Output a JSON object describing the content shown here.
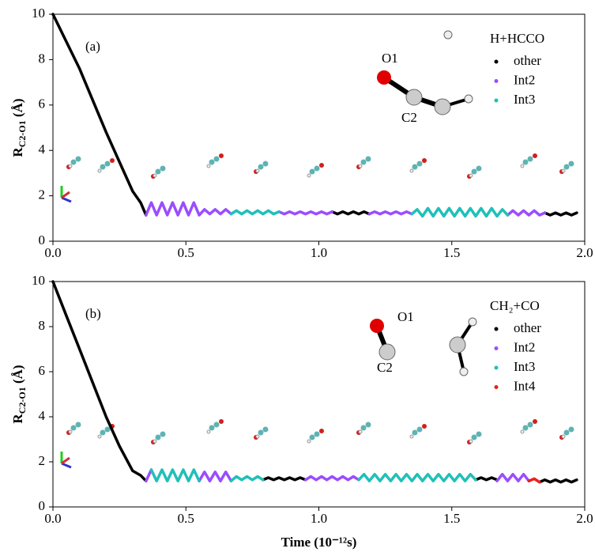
{
  "chart_data": [
    {
      "type": "line",
      "panel_label": "(a)",
      "legend_title": "H+HCCO",
      "ylabel": "R",
      "ylabel_sub": "C2-O1",
      "ylabel_unit": " (Å)",
      "annotations": [
        "O1",
        "C2"
      ],
      "xlim": [
        0,
        2
      ],
      "ylim": [
        0,
        10
      ],
      "xticks": [
        {
          "value": 0,
          "label": "0.0"
        },
        {
          "value": 0.5,
          "label": "0.5"
        },
        {
          "value": 1,
          "label": "1.0"
        },
        {
          "value": 1.5,
          "label": "1.5"
        },
        {
          "value": 2,
          "label": "2.0"
        }
      ],
      "yticks": [
        0,
        2,
        4,
        6,
        8,
        10
      ],
      "series": [
        {
          "name": "other",
          "color": "#000000",
          "x": [
            0,
            0.05,
            0.1,
            0.15,
            0.2,
            0.25,
            0.3,
            0.33,
            0.35,
            0.7,
            1.05,
            1.07,
            1.09,
            1.11,
            1.13,
            1.15,
            1.17,
            1.19,
            1.5,
            1.85,
            1.87,
            1.89,
            1.91,
            1.93,
            1.95,
            1.97
          ],
          "values": [
            10,
            8.8,
            7.6,
            6.2,
            4.8,
            3.5,
            2.2,
            1.7,
            1.15,
            null,
            1.3,
            1.2,
            1.3,
            1.2,
            1.3,
            1.2,
            1.3,
            1.2,
            null,
            1.25,
            1.15,
            1.25,
            1.15,
            1.25,
            1.15,
            1.25
          ]
        },
        {
          "name": "Int2",
          "color": "#9b4dff",
          "x": [
            0.35,
            0.37,
            0.39,
            0.41,
            0.43,
            0.45,
            0.47,
            0.49,
            0.51,
            0.53,
            0.55,
            0.57,
            0.59,
            0.61,
            0.63,
            0.65,
            0.67,
            0.76,
            0.85,
            0.87,
            0.89,
            0.91,
            0.93,
            0.95,
            0.97,
            0.99,
            1.01,
            1.03,
            1.05,
            1.12,
            1.19,
            1.21,
            1.23,
            1.25,
            1.27,
            1.29,
            1.31,
            1.33,
            1.35,
            1.5,
            1.71,
            1.73,
            1.75,
            1.77,
            1.79,
            1.81,
            1.83,
            1.85
          ],
          "values": [
            1.15,
            1.7,
            1.15,
            1.7,
            1.15,
            1.7,
            1.15,
            1.7,
            1.15,
            1.7,
            1.15,
            1.4,
            1.2,
            1.4,
            1.2,
            1.4,
            1.2,
            null,
            1.3,
            1.2,
            1.3,
            1.2,
            1.3,
            1.2,
            1.3,
            1.2,
            1.3,
            1.2,
            1.3,
            null,
            1.2,
            1.3,
            1.2,
            1.3,
            1.2,
            1.3,
            1.2,
            1.3,
            1.2,
            null,
            1.15,
            1.35,
            1.15,
            1.35,
            1.15,
            1.35,
            1.15,
            1.25
          ]
        },
        {
          "name": "Int3",
          "color": "#20c0b8",
          "x": [
            0.67,
            0.69,
            0.71,
            0.73,
            0.75,
            0.77,
            0.79,
            0.81,
            0.83,
            0.85,
            1.1,
            1.35,
            1.37,
            1.39,
            1.41,
            1.43,
            1.45,
            1.47,
            1.49,
            1.51,
            1.53,
            1.55,
            1.57,
            1.59,
            1.61,
            1.63,
            1.65,
            1.67,
            1.69,
            1.71
          ],
          "values": [
            1.2,
            1.35,
            1.2,
            1.35,
            1.2,
            1.35,
            1.2,
            1.35,
            1.2,
            1.3,
            null,
            1.2,
            1.4,
            1.1,
            1.45,
            1.1,
            1.45,
            1.1,
            1.45,
            1.1,
            1.45,
            1.1,
            1.45,
            1.1,
            1.45,
            1.1,
            1.45,
            1.1,
            1.4,
            1.15
          ]
        }
      ]
    },
    {
      "type": "line",
      "panel_label": "(b)",
      "legend_title": "CH₂+CO",
      "ylabel": "R",
      "ylabel_sub": "C2-O1",
      "ylabel_unit": " (Å)",
      "xlabel": "Time (10⁻¹²s)",
      "annotations": [
        "O1",
        "C2"
      ],
      "xlim": [
        0,
        2
      ],
      "ylim": [
        0,
        10
      ],
      "xticks": [
        {
          "value": 0,
          "label": "0.0"
        },
        {
          "value": 0.5,
          "label": "0.5"
        },
        {
          "value": 1,
          "label": "1.0"
        },
        {
          "value": 1.5,
          "label": "1.5"
        },
        {
          "value": 2,
          "label": "2.0"
        }
      ],
      "yticks": [
        0,
        2,
        4,
        6,
        8,
        10
      ],
      "series": [
        {
          "name": "other",
          "color": "#000000",
          "x": [
            0,
            0.05,
            0.1,
            0.15,
            0.2,
            0.25,
            0.3,
            0.33,
            0.35,
            0.6,
            0.79,
            0.81,
            0.83,
            0.85,
            0.87,
            0.89,
            0.91,
            0.93,
            0.95,
            1.3,
            1.59,
            1.61,
            1.63,
            1.65,
            1.67,
            1.75,
            1.83,
            1.85,
            1.87,
            1.89,
            1.91,
            1.93,
            1.95,
            1.97
          ],
          "values": [
            10,
            8.5,
            7,
            5.5,
            4,
            2.7,
            1.6,
            1.4,
            1.15,
            null,
            1.2,
            1.3,
            1.2,
            1.3,
            1.2,
            1.3,
            1.2,
            1.3,
            1.2,
            null,
            1.2,
            1.3,
            1.2,
            1.3,
            1.2,
            null,
            1.1,
            1.2,
            1.1,
            1.2,
            1.1,
            1.2,
            1.1,
            1.2
          ]
        },
        {
          "name": "Int2",
          "color": "#9b4dff",
          "x": [
            0.35,
            0.37,
            0.46,
            0.55,
            0.57,
            0.59,
            0.61,
            0.63,
            0.65,
            0.67,
            0.8,
            0.95,
            0.97,
            0.99,
            1.01,
            1.03,
            1.05,
            1.07,
            1.09,
            1.11,
            1.13,
            1.15,
            1.4,
            1.67,
            1.69,
            1.71,
            1.73,
            1.75,
            1.77,
            1.79
          ],
          "values": [
            1.15,
            1.65,
            null,
            1.15,
            1.55,
            1.15,
            1.55,
            1.15,
            1.55,
            1.15,
            null,
            1.2,
            1.35,
            1.2,
            1.35,
            1.2,
            1.35,
            1.2,
            1.35,
            1.2,
            1.35,
            1.2,
            null,
            1.15,
            1.45,
            1.15,
            1.45,
            1.15,
            1.45,
            1.15
          ]
        },
        {
          "name": "Int3",
          "color": "#20c0b8",
          "x": [
            0.37,
            0.39,
            0.41,
            0.43,
            0.45,
            0.47,
            0.49,
            0.51,
            0.53,
            0.55,
            0.6,
            0.67,
            0.69,
            0.71,
            0.73,
            0.75,
            0.77,
            0.79,
            1.0,
            1.15,
            1.17,
            1.19,
            1.21,
            1.23,
            1.25,
            1.27,
            1.29,
            1.31,
            1.33,
            1.35,
            1.37,
            1.39,
            1.41,
            1.43,
            1.45,
            1.47,
            1.49,
            1.51,
            1.53,
            1.55,
            1.57,
            1.59
          ],
          "values": [
            1.65,
            1.15,
            1.65,
            1.15,
            1.65,
            1.15,
            1.65,
            1.15,
            1.65,
            1.15,
            null,
            1.15,
            1.35,
            1.2,
            1.35,
            1.2,
            1.35,
            1.2,
            null,
            1.2,
            1.45,
            1.15,
            1.45,
            1.15,
            1.45,
            1.15,
            1.45,
            1.15,
            1.45,
            1.15,
            1.45,
            1.15,
            1.45,
            1.15,
            1.45,
            1.15,
            1.45,
            1.15,
            1.45,
            1.15,
            1.45,
            1.2
          ]
        },
        {
          "name": "Int4",
          "color": "#e8201c",
          "x": [
            1.79,
            1.81,
            1.83
          ],
          "values": [
            1.15,
            1.25,
            1.1
          ]
        }
      ]
    }
  ]
}
